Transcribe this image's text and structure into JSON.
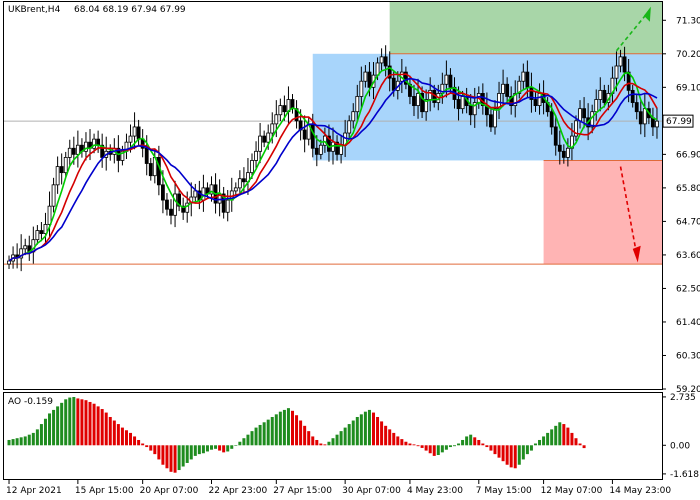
{
  "header": {
    "symbol": "UKBrent,H4",
    "ohlc": "68.04 68.19 67.94 67.99"
  },
  "oscillator": {
    "label": "AO -0.159",
    "ticks": [
      "2.735",
      "0.00",
      "-1.618"
    ]
  },
  "price_axis": {
    "ticks": [
      "71.30",
      "70.20",
      "69.10",
      "67.99",
      "66.90",
      "65.80",
      "64.70",
      "63.60",
      "62.50",
      "61.40",
      "60.30",
      "59.20"
    ],
    "current": "67.99"
  },
  "time_axis": {
    "labels": [
      "12 Apr 2021",
      "15 Apr 15:00",
      "20 Apr 07:00",
      "22 Apr 23:00",
      "27 Apr 15:00",
      "30 Apr 07:00",
      "4 May 23:00",
      "7 May 15:00",
      "12 May 07:00",
      "14 May 23:00"
    ]
  },
  "colors": {
    "candle": "#000000",
    "ma_fast": "#00cc00",
    "ma_mid": "#d40000",
    "ma_slow": "#0000cc",
    "zone_range": "#9fd0fb",
    "zone_up": "#9fd29f",
    "zone_down": "#ffacac",
    "ao_up": "#1f8c1f",
    "ao_down": "#e00000",
    "level_line": "#e06a3a"
  },
  "chart_data": {
    "type": "candlestick",
    "symbol": "UKBrent,H4",
    "ylim": [
      59.2,
      71.9
    ],
    "current_price": 67.99,
    "levels": [
      70.2,
      66.7,
      63.3
    ],
    "zones": [
      {
        "name": "range",
        "from_bar": 75,
        "to_bar": 163,
        "low": 66.7,
        "high": 70.2
      },
      {
        "name": "up-target",
        "from_bar": 94,
        "to_bar": 163,
        "low": 70.2,
        "high": 71.9
      },
      {
        "name": "down-target",
        "from_bar": 132,
        "to_bar": 163,
        "low": 63.3,
        "high": 66.7
      }
    ],
    "closes": [
      63.4,
      63.6,
      63.5,
      63.8,
      63.9,
      63.7,
      64.1,
      64.4,
      64.3,
      64.6,
      65.2,
      65.9,
      66.5,
      66.3,
      66.8,
      67.1,
      66.9,
      67.2,
      67.0,
      67.3,
      67.1,
      67.4,
      67.2,
      66.8,
      67.0,
      66.9,
      67.1,
      66.7,
      67.0,
      67.3,
      67.5,
      67.8,
      67.4,
      67.1,
      66.6,
      66.2,
      66.8,
      65.9,
      65.4,
      65.1,
      64.9,
      65.6,
      65.2,
      65.0,
      65.3,
      65.5,
      65.7,
      65.4,
      65.8,
      65.6,
      65.9,
      65.3,
      65.6,
      65.0,
      65.4,
      65.7,
      65.8,
      66.1,
      66.0,
      66.3,
      66.7,
      67.0,
      67.5,
      67.3,
      67.6,
      67.9,
      68.2,
      68.5,
      68.3,
      68.7,
      68.4,
      68.0,
      67.7,
      67.4,
      67.9,
      67.1,
      66.9,
      67.2,
      67.5,
      67.0,
      67.3,
      66.9,
      67.2,
      67.6,
      68.0,
      68.3,
      68.8,
      69.3,
      69.6,
      69.1,
      69.5,
      69.9,
      70.1,
      69.8,
      69.4,
      69.0,
      69.3,
      69.6,
      69.2,
      68.8,
      68.5,
      68.9,
      68.3,
      68.7,
      69.0,
      68.6,
      68.9,
      69.2,
      69.5,
      69.1,
      68.7,
      68.4,
      68.8,
      68.5,
      68.2,
      68.6,
      68.9,
      68.5,
      68.2,
      67.8,
      68.4,
      68.9,
      69.2,
      68.8,
      68.5,
      68.9,
      69.3,
      69.6,
      69.1,
      68.7,
      68.5,
      68.9,
      68.6,
      68.3,
      67.8,
      67.2,
      67.0,
      66.8,
      67.1,
      67.5,
      68.0,
      68.4,
      68.1,
      67.8,
      68.3,
      68.7,
      69.0,
      68.6,
      68.9,
      69.4,
      69.8,
      70.1,
      69.6,
      69.0,
      68.6,
      68.3,
      67.9,
      68.4,
      68.1,
      67.8,
      67.99
    ],
    "ao": [
      0.3,
      0.35,
      0.4,
      0.45,
      0.5,
      0.6,
      0.7,
      0.9,
      1.2,
      1.5,
      1.8,
      2.0,
      2.2,
      2.4,
      2.6,
      2.7,
      2.73,
      2.65,
      2.6,
      2.55,
      2.45,
      2.35,
      2.2,
      2.05,
      1.85,
      1.6,
      1.4,
      1.2,
      1.0,
      0.85,
      0.7,
      0.5,
      0.3,
      0.1,
      -0.1,
      -0.3,
      -0.5,
      -0.8,
      -1.1,
      -1.3,
      -1.5,
      -1.55,
      -1.4,
      -1.2,
      -1.0,
      -0.8,
      -0.6,
      -0.5,
      -0.45,
      -0.35,
      -0.25,
      -0.2,
      -0.3,
      -0.4,
      -0.35,
      -0.2,
      0.0,
      0.2,
      0.4,
      0.6,
      0.8,
      1.0,
      1.15,
      1.3,
      1.45,
      1.6,
      1.75,
      1.9,
      2.0,
      2.1,
      1.95,
      1.7,
      1.4,
      1.1,
      0.8,
      0.5,
      0.3,
      0.1,
      0.05,
      0.2,
      0.4,
      0.6,
      0.8,
      1.0,
      1.2,
      1.4,
      1.6,
      1.75,
      1.9,
      2.0,
      1.85,
      1.6,
      1.35,
      1.1,
      0.9,
      0.7,
      0.5,
      0.35,
      0.2,
      0.1,
      0.05,
      -0.05,
      -0.15,
      -0.3,
      -0.45,
      -0.6,
      -0.55,
      -0.4,
      -0.25,
      -0.1,
      -0.05,
      0.1,
      0.3,
      0.5,
      0.6,
      0.45,
      0.3,
      0.1,
      -0.1,
      -0.3,
      -0.5,
      -0.7,
      -0.9,
      -1.1,
      -1.25,
      -1.3,
      -1.1,
      -0.8,
      -0.5,
      -0.3,
      0.1,
      0.3,
      0.5,
      0.7,
      0.9,
      1.1,
      1.3,
      1.2,
      1.0,
      0.7,
      0.4,
      0.1,
      -0.159
    ]
  }
}
